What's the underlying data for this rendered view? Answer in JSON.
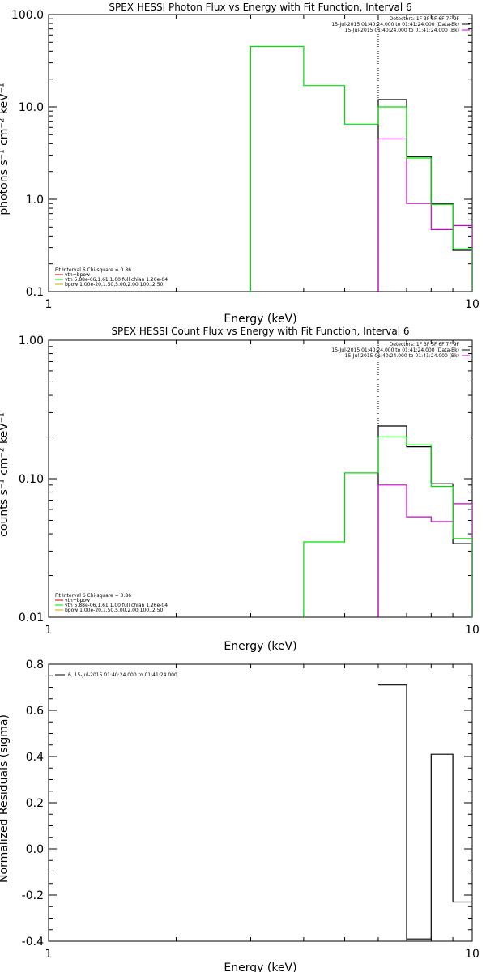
{
  "colors": {
    "observed": "#000000",
    "background": "#cc00cc",
    "vth": "#cc0000",
    "fit": "#00dd00",
    "bpow": "#ccaa00"
  },
  "chart_data": [
    {
      "type": "line",
      "title": "SPEX HESSI Photon Flux vs Energy with Fit Function, Interval 6",
      "xlabel": "Energy (keV)",
      "ylabel": "photons s⁻¹ cm⁻² keV⁻¹",
      "xscale": "log",
      "yscale": "log",
      "xlim": [
        1,
        10
      ],
      "ylim": [
        0.1,
        100
      ],
      "xticks": [
        {
          "v": 1,
          "label": "1"
        },
        {
          "v": 10,
          "label": "10"
        }
      ],
      "yticks": [
        {
          "v": 0.1,
          "label": "0.1"
        },
        {
          "v": 1,
          "label": "1.0"
        },
        {
          "v": 10,
          "label": "10.0"
        },
        {
          "v": 100,
          "label": "100.0"
        }
      ],
      "vline": 6,
      "legend_tr": [
        "Detectors: 1F 3F 5F 6F 7F 9F",
        "15-Jul-2015 01:40:24.000 to 01:41:24.000 (Data-Bk)",
        "15-Jul-2015 01:40:24.000 to 01:41:24.000 (Bk)"
      ],
      "legend_bl": [
        "Fit Interval 6   Chi-square = 0.86",
        "vth+bpow",
        "vth 5.88e-06,1.61,1.00  full chian 1.26e-04",
        "bpow 1.00e-20,1.50,5.00,2.00,100.,2.50"
      ],
      "series": [
        {
          "name": "15-Jul-2015 01:40:24.000 to 01:41:24.000 (Data-Bk)",
          "color": "#000000",
          "edges": [
            6,
            7,
            8,
            9,
            10
          ],
          "values": [
            12,
            2.9,
            0.9,
            0.28
          ]
        },
        {
          "name": "15-Jul-2015 01:40:24.000 to 01:41:24.000 (Bk)",
          "color": "#cc00cc",
          "edges": [
            6,
            7,
            8,
            9,
            10
          ],
          "values": [
            4.5,
            0.9,
            0.47,
            0.52
          ]
        },
        {
          "name": "vth+bpow",
          "color": "#00dd00",
          "edges": [
            3,
            4,
            5,
            6,
            7,
            8,
            9,
            10
          ],
          "values": [
            45,
            17,
            6.5,
            10,
            2.8,
            0.88,
            0.29
          ]
        }
      ]
    },
    {
      "type": "line",
      "title": "SPEX HESSI Count Flux vs Energy with Fit Function, Interval 6",
      "xlabel": "Energy (keV)",
      "ylabel": "counts s⁻¹ cm⁻² keV⁻¹",
      "xscale": "log",
      "yscale": "log",
      "xlim": [
        1,
        10
      ],
      "ylim": [
        0.01,
        1
      ],
      "xticks": [
        {
          "v": 1,
          "label": "1"
        },
        {
          "v": 10,
          "label": "10"
        }
      ],
      "yticks": [
        {
          "v": 0.01,
          "label": "0.01"
        },
        {
          "v": 0.1,
          "label": "0.10"
        },
        {
          "v": 1,
          "label": "1.00"
        }
      ],
      "vline": 6,
      "legend_tr": [
        "Detectors: 1F 3F 5F 6F 7F 9F",
        "15-Jul-2015 01:40:24.000 to 01:41:24.000 (Data-Bk)",
        "15-Jul-2015 01:40:24.000 to 01:41:24.000 (Bk)"
      ],
      "legend_bl": [
        "Fit Interval 6   Chi-square = 0.86",
        "vth+bpow",
        "vth 5.88e-06,1.61,1.00  full chian 1.26e-04",
        "bpow 1.00e-20,1.50,5.00,2.00,100.,2.50"
      ],
      "series": [
        {
          "name": "15-Jul-2015 01:40:24.000 to 01:41:24.000 (Data-Bk)",
          "color": "#000000",
          "edges": [
            6,
            7,
            8,
            9,
            10
          ],
          "values": [
            0.24,
            0.17,
            0.092,
            0.034
          ]
        },
        {
          "name": "15-Jul-2015 01:40:24.000 to 01:41:24.000 (Bk)",
          "color": "#cc00cc",
          "edges": [
            6,
            7,
            8,
            9,
            10
          ],
          "values": [
            0.09,
            0.053,
            0.049,
            0.066
          ]
        },
        {
          "name": "vth+bpow",
          "color": "#00dd00",
          "edges": [
            4,
            5,
            6,
            7,
            8,
            9,
            10
          ],
          "values": [
            0.035,
            0.11,
            0.2,
            0.175,
            0.088,
            0.037
          ]
        }
      ]
    },
    {
      "type": "line",
      "title": "",
      "xlabel": "Energy (keV)",
      "ylabel": "Normalized Residuals (sigma)",
      "xscale": "log",
      "yscale": "linear",
      "xlim": [
        1,
        10
      ],
      "ylim": [
        -0.4,
        0.8
      ],
      "xticks": [
        {
          "v": 1,
          "label": "1"
        },
        {
          "v": 10,
          "label": "10"
        }
      ],
      "yticks": [
        {
          "v": -0.4,
          "label": "-0.4"
        },
        {
          "v": -0.2,
          "label": "-0.2"
        },
        {
          "v": 0,
          "label": "0.0"
        },
        {
          "v": 0.2,
          "label": "0.2"
        },
        {
          "v": 0.4,
          "label": "0.4"
        },
        {
          "v": 0.6,
          "label": "0.6"
        },
        {
          "v": 0.8,
          "label": "0.8"
        }
      ],
      "legend_tr": [],
      "legend_bl": [],
      "legend_tl": [
        "6, 15-Jul-2015 01:40:24.000 to 01:41:24.000"
      ],
      "series": [
        {
          "name": "6, 15-Jul-2015 01:40:24.000 to 01:41:24.000",
          "color": "#000000",
          "edges": [
            6,
            7,
            8,
            9,
            10
          ],
          "values": [
            0.71,
            -0.39,
            0.41,
            -0.23
          ]
        }
      ]
    }
  ]
}
